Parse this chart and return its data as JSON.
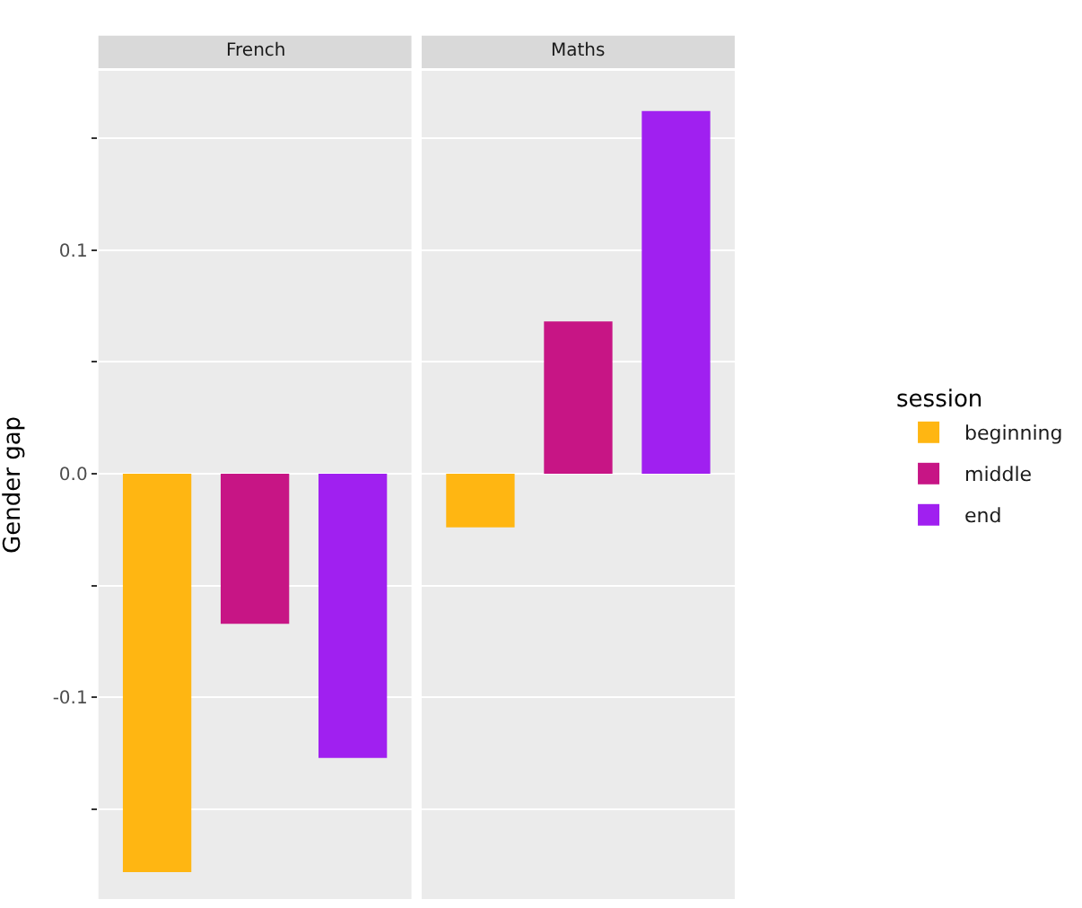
{
  "chart_data": {
    "type": "bar",
    "ylabel": "Gender gap",
    "legend_title": "session",
    "categories": [
      "French",
      "Maths"
    ],
    "ylim": [
      -0.19,
      0.18
    ],
    "yticks": [
      {
        "value": -0.15,
        "label": null
      },
      {
        "value": -0.1,
        "label": "-0.1"
      },
      {
        "value": -0.05,
        "label": null
      },
      {
        "value": 0,
        "label": "0.0"
      },
      {
        "value": 0.05,
        "label": null
      },
      {
        "value": 0.1,
        "label": "0.1"
      },
      {
        "value": 0.15,
        "label": null
      }
    ],
    "grid": true,
    "legend": "right",
    "series": [
      {
        "name": "beginning",
        "color": "#ffb612",
        "values": [
          -0.178,
          -0.024
        ]
      },
      {
        "name": "middle",
        "color": "#c71585",
        "values": [
          -0.067,
          0.068
        ]
      },
      {
        "name": "end",
        "color": "#a020f0",
        "values": [
          -0.127,
          0.162
        ]
      }
    ]
  }
}
